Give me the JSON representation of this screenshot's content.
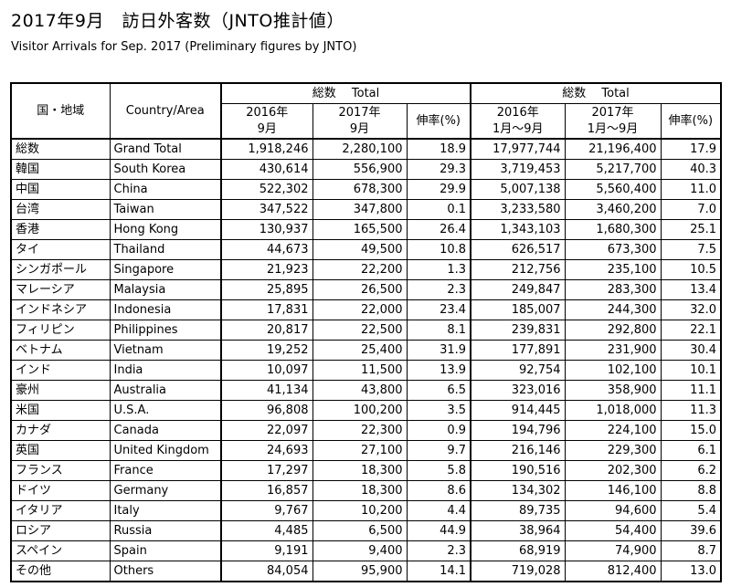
{
  "title": "2017年9月　訪日外客数（JNTO推計値）",
  "subtitle": "Visitor Arrivals for Sep. 2017 (Preliminary figures by JNTO)",
  "header": {
    "col_region_ja": "国・地域",
    "col_country_en": "Country/Area",
    "group_monthly": "総数　 Total",
    "group_cumulative": "総数　 Total",
    "m2016_line1": "2016年",
    "m2016_line2": "9月",
    "m2017_line1": "2017年",
    "m2017_line2": "9月",
    "growth_monthly": "伸率(%)",
    "c2016_line1": "2016年",
    "c2016_line2": "1月～9月",
    "c2017_line1": "2017年",
    "c2017_line2": "1月～9月",
    "growth_cumulative": "伸率(%)"
  },
  "rows": [
    {
      "ja": "総数",
      "en": "Grand Total",
      "m2016": "1,918,246",
      "m2017": "2,280,100",
      "mg": "18.9",
      "c2016": "17,977,744",
      "c2017": "21,196,400",
      "cg": "17.9"
    },
    {
      "ja": "韓国",
      "en": "South Korea",
      "m2016": "430,614",
      "m2017": "556,900",
      "mg": "29.3",
      "c2016": "3,719,453",
      "c2017": "5,217,700",
      "cg": "40.3"
    },
    {
      "ja": "中国",
      "en": "China",
      "m2016": "522,302",
      "m2017": "678,300",
      "mg": "29.9",
      "c2016": "5,007,138",
      "c2017": "5,560,400",
      "cg": "11.0"
    },
    {
      "ja": "台湾",
      "en": "Taiwan",
      "m2016": "347,522",
      "m2017": "347,800",
      "mg": "0.1",
      "c2016": "3,233,580",
      "c2017": "3,460,200",
      "cg": "7.0"
    },
    {
      "ja": "香港",
      "en": "Hong Kong",
      "m2016": "130,937",
      "m2017": "165,500",
      "mg": "26.4",
      "c2016": "1,343,103",
      "c2017": "1,680,300",
      "cg": "25.1"
    },
    {
      "ja": "タイ",
      "en": "Thailand",
      "m2016": "44,673",
      "m2017": "49,500",
      "mg": "10.8",
      "c2016": "626,517",
      "c2017": "673,300",
      "cg": "7.5"
    },
    {
      "ja": "シンガポール",
      "en": "Singapore",
      "m2016": "21,923",
      "m2017": "22,200",
      "mg": "1.3",
      "c2016": "212,756",
      "c2017": "235,100",
      "cg": "10.5"
    },
    {
      "ja": "マレーシア",
      "en": "Malaysia",
      "m2016": "25,895",
      "m2017": "26,500",
      "mg": "2.3",
      "c2016": "249,847",
      "c2017": "283,300",
      "cg": "13.4"
    },
    {
      "ja": "インドネシア",
      "en": "Indonesia",
      "m2016": "17,831",
      "m2017": "22,000",
      "mg": "23.4",
      "c2016": "185,007",
      "c2017": "244,300",
      "cg": "32.0"
    },
    {
      "ja": "フィリピン",
      "en": "Philippines",
      "m2016": "20,817",
      "m2017": "22,500",
      "mg": "8.1",
      "c2016": "239,831",
      "c2017": "292,800",
      "cg": "22.1"
    },
    {
      "ja": "ベトナム",
      "en": "Vietnam",
      "m2016": "19,252",
      "m2017": "25,400",
      "mg": "31.9",
      "c2016": "177,891",
      "c2017": "231,900",
      "cg": "30.4"
    },
    {
      "ja": "インド",
      "en": "India",
      "m2016": "10,097",
      "m2017": "11,500",
      "mg": "13.9",
      "c2016": "92,754",
      "c2017": "102,100",
      "cg": "10.1"
    },
    {
      "ja": "豪州",
      "en": "Australia",
      "m2016": "41,134",
      "m2017": "43,800",
      "mg": "6.5",
      "c2016": "323,016",
      "c2017": "358,900",
      "cg": "11.1"
    },
    {
      "ja": "米国",
      "en": "U.S.A.",
      "m2016": "96,808",
      "m2017": "100,200",
      "mg": "3.5",
      "c2016": "914,445",
      "c2017": "1,018,000",
      "cg": "11.3"
    },
    {
      "ja": "カナダ",
      "en": "Canada",
      "m2016": "22,097",
      "m2017": "22,300",
      "mg": "0.9",
      "c2016": "194,796",
      "c2017": "224,100",
      "cg": "15.0"
    },
    {
      "ja": "英国",
      "en": "United Kingdom",
      "m2016": "24,693",
      "m2017": "27,100",
      "mg": "9.7",
      "c2016": "216,146",
      "c2017": "229,300",
      "cg": "6.1"
    },
    {
      "ja": "フランス",
      "en": "France",
      "m2016": "17,297",
      "m2017": "18,300",
      "mg": "5.8",
      "c2016": "190,516",
      "c2017": "202,300",
      "cg": "6.2"
    },
    {
      "ja": "ドイツ",
      "en": "Germany",
      "m2016": "16,857",
      "m2017": "18,300",
      "mg": "8.6",
      "c2016": "134,302",
      "c2017": "146,100",
      "cg": "8.8"
    },
    {
      "ja": "イタリア",
      "en": "Italy",
      "m2016": "9,767",
      "m2017": "10,200",
      "mg": "4.4",
      "c2016": "89,735",
      "c2017": "94,600",
      "cg": "5.4"
    },
    {
      "ja": "ロシア",
      "en": "Russia",
      "m2016": "4,485",
      "m2017": "6,500",
      "mg": "44.9",
      "c2016": "38,964",
      "c2017": "54,400",
      "cg": "39.6"
    },
    {
      "ja": "スペイン",
      "en": "Spain",
      "m2016": "9,191",
      "m2017": "9,400",
      "mg": "2.3",
      "c2016": "68,919",
      "c2017": "74,900",
      "cg": "8.7"
    },
    {
      "ja": "その他",
      "en": "Others",
      "m2016": "84,054",
      "m2017": "95,900",
      "mg": "14.1",
      "c2016": "719,028",
      "c2017": "812,400",
      "cg": "13.0"
    }
  ]
}
